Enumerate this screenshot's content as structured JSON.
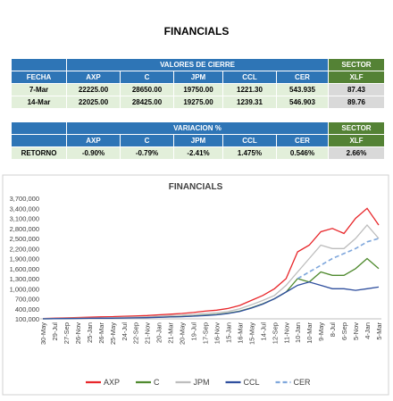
{
  "header": {
    "title": "FINANCIALS"
  },
  "table1": {
    "group_title": "VALORES DE CIERRE",
    "sector": "SECTOR",
    "columns": [
      "FECHA",
      "AXP",
      "C",
      "JPM",
      "CCL",
      "CER",
      "XLF"
    ],
    "rows": [
      [
        "7-Mar",
        "22225.00",
        "28650.00",
        "19750.00",
        "1221.30",
        "543.935",
        "87.43"
      ],
      [
        "14-Mar",
        "22025.00",
        "28425.00",
        "19275.00",
        "1239.31",
        "546.903",
        "89.76"
      ]
    ]
  },
  "table2": {
    "group_title": "VARIACION %",
    "sector": "SECTOR",
    "columns": [
      "AXP",
      "C",
      "JPM",
      "CCL",
      "CER",
      "XLF"
    ],
    "rows": [
      [
        "RETORNO",
        "-0.90%",
        "-0.79%",
        "-2.41%",
        "1.475%",
        "0.546%",
        "2.66%"
      ]
    ]
  },
  "chart_data": {
    "type": "line",
    "title": "FINANCIALS",
    "categories": [
      "30-May",
      "29-Jul",
      "27-Sep",
      "26-Nov",
      "25-Jan",
      "26-Mar",
      "25-May",
      "24-Jul",
      "22-Sep",
      "21-Nov",
      "20-Jan",
      "21-Mar",
      "20-May",
      "19-Jul",
      "17-Sep",
      "16-Nov",
      "15-Jan",
      "16-Mar",
      "15-May",
      "14-Jul",
      "12-Sep",
      "11-Nov",
      "10-Jan",
      "10-Mar",
      "9-May",
      "8-Jul",
      "6-Sep",
      "5-Nov",
      "4-Jan",
      "5-Mar"
    ],
    "ylim": [
      100000,
      3700000
    ],
    "yticks": [
      {
        "value": 100000,
        "label": "100,000"
      },
      {
        "value": 400000,
        "label": "400,000"
      },
      {
        "value": 700000,
        "label": "700,000"
      },
      {
        "value": 1000000,
        "label": "1,000,000"
      },
      {
        "value": 1300000,
        "label": "1,300,000"
      },
      {
        "value": 1600000,
        "label": "1,600,000"
      },
      {
        "value": 1900000,
        "label": "1,900,000"
      },
      {
        "value": 2200000,
        "label": "2,200,000"
      },
      {
        "value": 2500000,
        "label": "2,500,000"
      },
      {
        "value": 2800000,
        "label": "2,800,000"
      },
      {
        "value": 3100000,
        "label": "3,100,000"
      },
      {
        "value": 3400000,
        "label": "3,400,000"
      },
      {
        "value": 3700000,
        "label": "3,700,000"
      }
    ],
    "grid": false,
    "series": [
      {
        "name": "AXP",
        "color": "#e8262a",
        "dash": false,
        "values": [
          110000,
          120000,
          130000,
          140000,
          150000,
          160000,
          165000,
          175000,
          185000,
          200000,
          220000,
          240000,
          260000,
          290000,
          330000,
          360000,
          410000,
          500000,
          650000,
          800000,
          1000000,
          1300000,
          2100000,
          2300000,
          2700000,
          2800000,
          2650000,
          3100000,
          3400000,
          2900000
        ]
      },
      {
        "name": "C",
        "color": "#4f8a2e",
        "dash": false,
        "values": [
          100000,
          105000,
          110000,
          115000,
          118000,
          120000,
          125000,
          130000,
          135000,
          140000,
          150000,
          160000,
          170000,
          185000,
          210000,
          230000,
          270000,
          330000,
          430000,
          550000,
          700000,
          900000,
          1300000,
          1200000,
          1500000,
          1400000,
          1400000,
          1600000,
          1900000,
          1600000
        ]
      },
      {
        "name": "JPM",
        "color": "#bdbdbd",
        "dash": false,
        "values": [
          105000,
          110000,
          115000,
          120000,
          125000,
          130000,
          135000,
          145000,
          155000,
          165000,
          180000,
          195000,
          210000,
          230000,
          260000,
          280000,
          320000,
          400000,
          520000,
          650000,
          800000,
          1100000,
          1500000,
          1900000,
          2300000,
          2200000,
          2200000,
          2500000,
          2900000,
          2500000
        ]
      },
      {
        "name": "CCL",
        "color": "#2f4f9e",
        "dash": false,
        "values": [
          100000,
          105000,
          108000,
          112000,
          115000,
          118000,
          120000,
          125000,
          130000,
          135000,
          145000,
          155000,
          165000,
          180000,
          200000,
          220000,
          260000,
          320000,
          420000,
          540000,
          700000,
          900000,
          1100000,
          1200000,
          1100000,
          1000000,
          1000000,
          950000,
          1000000,
          1050000
        ]
      },
      {
        "name": "CER",
        "color": "#7fa7dc",
        "dash": true,
        "values": [
          null,
          null,
          null,
          null,
          null,
          null,
          null,
          null,
          null,
          null,
          null,
          null,
          null,
          null,
          null,
          null,
          null,
          null,
          null,
          null,
          null,
          null,
          1300000,
          1500000,
          1700000,
          1900000,
          2050000,
          2200000,
          2400000,
          2500000
        ]
      }
    ]
  }
}
